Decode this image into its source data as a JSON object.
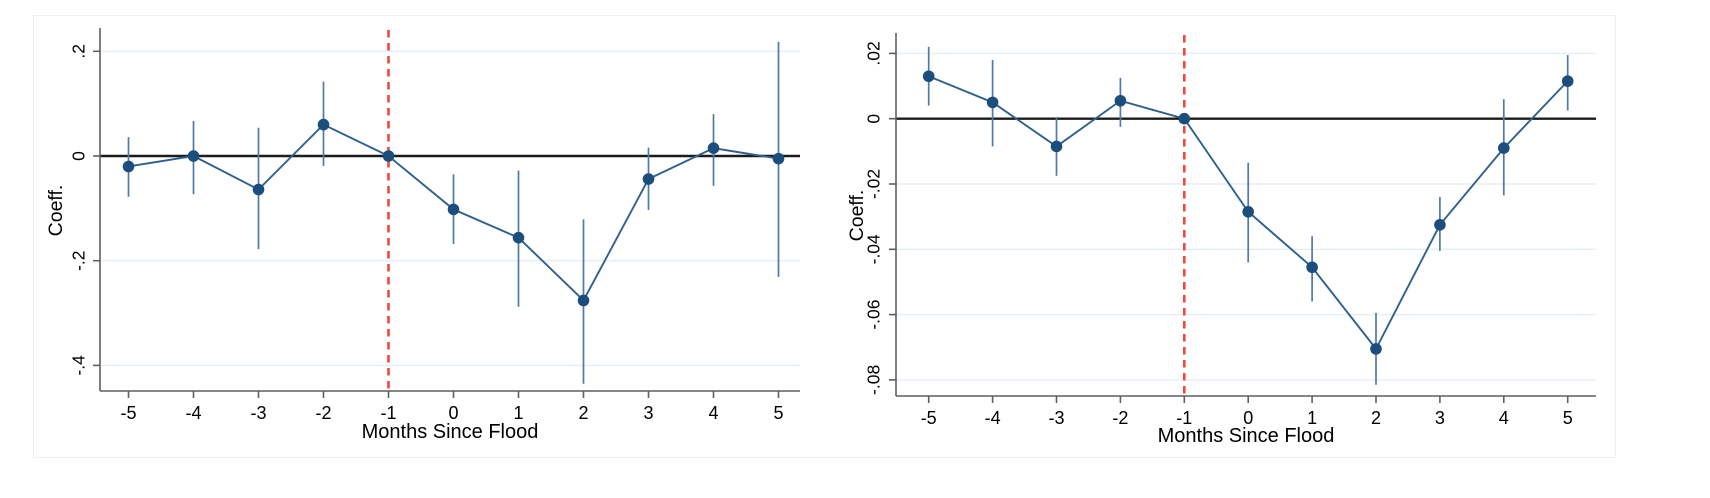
{
  "colors": {
    "marker": "#1b4e7c",
    "series_line": "#2e618f",
    "ci_line": "#4f7aa8",
    "zero_line": "#1c1c1c",
    "ref_line": "#f2473d",
    "gridline": "#e5eef6",
    "axis": "#5f5f5f",
    "text": "#000000",
    "background": "#ffffff"
  },
  "chart_data": [
    {
      "id": "left",
      "type": "line",
      "title": "",
      "xlabel": "Months Since Flood",
      "ylabel": "Coeff.",
      "x": [
        -5,
        -4,
        -3,
        -2,
        -1,
        0,
        1,
        2,
        3,
        4,
        5
      ],
      "xtick_labels": [
        "-5",
        "-4",
        "-3",
        "-2",
        "-1",
        "0",
        "1",
        "2",
        "3",
        "4",
        "5"
      ],
      "series": [
        {
          "name": "coefficient",
          "values": [
            -0.02,
            0.0,
            -0.064,
            0.06,
            0.0,
            -0.102,
            -0.156,
            -0.276,
            -0.044,
            0.015,
            -0.005
          ],
          "ci_low": [
            -0.078,
            -0.073,
            -0.178,
            -0.019,
            null,
            -0.168,
            -0.288,
            -0.435,
            -0.103,
            -0.057,
            -0.231
          ],
          "ci_high": [
            0.036,
            0.067,
            0.054,
            0.142,
            null,
            -0.035,
            -0.028,
            -0.121,
            0.016,
            0.08,
            0.218
          ]
        }
      ],
      "yticks": [
        0.2,
        0,
        -0.2,
        -0.4
      ],
      "ytick_labels": [
        ".2",
        "0",
        "-.2",
        "-.4"
      ],
      "ylim": [
        -0.45,
        0.24
      ],
      "xlim": [
        -5.45,
        5.35
      ],
      "ref_line_x": -1,
      "zero_line_y": 0,
      "grid": true,
      "legend": "none",
      "ci_caps": false
    },
    {
      "id": "right",
      "type": "line",
      "title": "",
      "xlabel": "Months Since Flood",
      "ylabel": "Coeff.",
      "x": [
        -5,
        -4,
        -3,
        -2,
        -1,
        0,
        1,
        2,
        3,
        4,
        5
      ],
      "xtick_labels": [
        "-5",
        "-4",
        "-3",
        "-2",
        "-1",
        "0",
        "1",
        "2",
        "3",
        "4",
        "5"
      ],
      "series": [
        {
          "name": "coefficient",
          "values": [
            0.013,
            0.005,
            -0.0085,
            0.0055,
            0.0,
            -0.0285,
            -0.0455,
            -0.0705,
            -0.0325,
            -0.009,
            0.0115
          ],
          "ci_low": [
            0.004,
            -0.0085,
            -0.0175,
            -0.0025,
            null,
            -0.044,
            -0.056,
            -0.0815,
            -0.0405,
            -0.0235,
            0.0025
          ],
          "ci_high": [
            0.022,
            0.018,
            0.0005,
            0.0125,
            null,
            -0.0135,
            -0.036,
            -0.0595,
            -0.024,
            0.006,
            0.0195
          ]
        }
      ],
      "yticks": [
        0.02,
        0,
        -0.02,
        -0.04,
        -0.06,
        -0.08
      ],
      "ytick_labels": [
        ".02",
        "0",
        "-.02",
        "-.04",
        "-.06",
        "-.08"
      ],
      "ylim": [
        -0.0855,
        0.0255
      ],
      "xlim": [
        -5.5,
        5.45
      ],
      "ref_line_x": -1,
      "zero_line_y": 0,
      "grid": true,
      "legend": "none",
      "ci_caps": false
    }
  ]
}
